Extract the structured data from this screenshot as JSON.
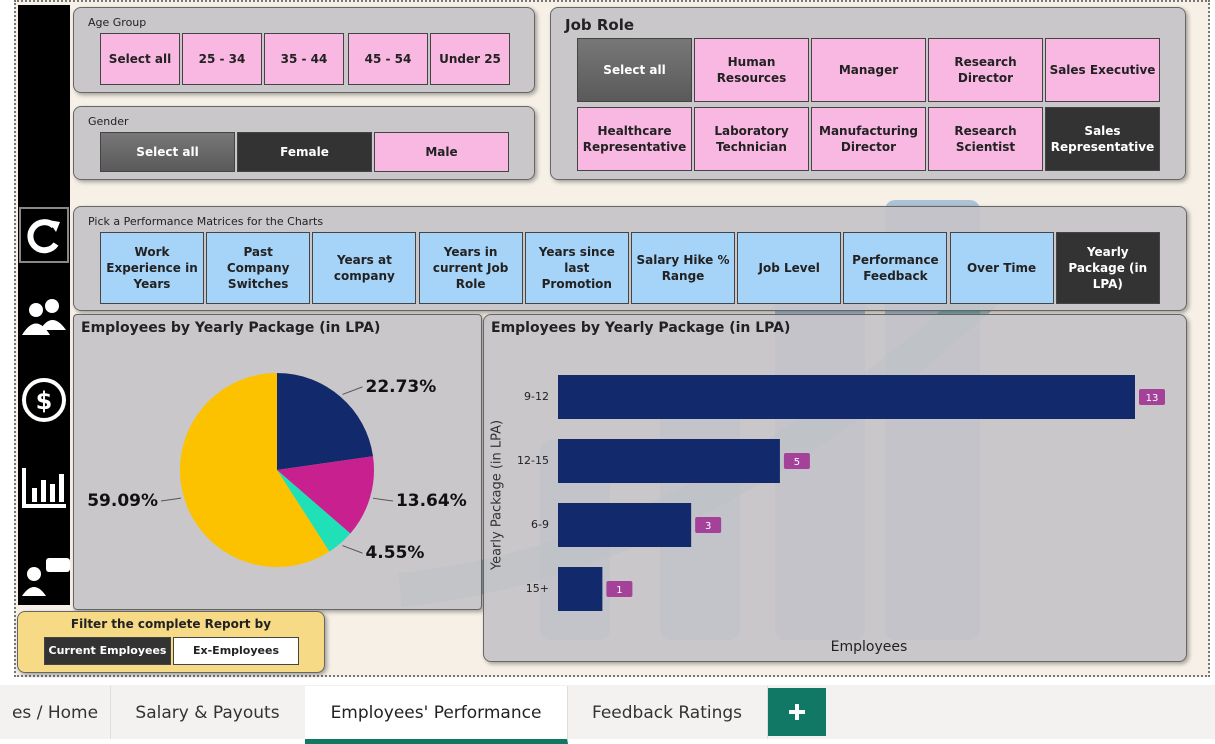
{
  "age_group": {
    "title": "Age Group",
    "options": [
      "Select all",
      "25 - 34",
      "35 - 44",
      "45 - 54",
      "Under 25"
    ]
  },
  "gender": {
    "title": "Gender",
    "options": [
      "Select all",
      "Female",
      "Male"
    ]
  },
  "job_role": {
    "title": "Job Role",
    "options": [
      "Select all",
      "Human Resources",
      "Manager",
      "Research Director",
      "Sales Executive",
      "Healthcare Representative",
      "Laboratory Technician",
      "Manufacturing Director",
      "Research Scientist",
      "Sales Representative"
    ]
  },
  "metrics": {
    "title": "Pick a Performance Matrices for the Charts",
    "options": [
      "Work Experience in Years",
      "Past Company Switches",
      "Years at company",
      "Years in current Job Role",
      "Years since last Promotion",
      "Salary Hike % Range",
      "Job Level",
      "Performance Feedback",
      "Over Time",
      "Yearly Package (in LPA)"
    ]
  },
  "filter": {
    "title": "Filter the complete Report by",
    "options": [
      "Current Employees",
      "Ex-Employees"
    ]
  },
  "tabs": [
    "es / Home",
    "Salary & Payouts",
    "Employees' Performance",
    "Feedback Ratings"
  ],
  "chart_data": [
    {
      "type": "pie",
      "title": "Employees by Yearly Package (in LPA)",
      "values": [
        22.73,
        13.64,
        4.55,
        59.09
      ],
      "value_labels": [
        "22.73%",
        "13.64%",
        "4.55%",
        "59.09%"
      ],
      "colors": [
        "#12296b",
        "#c8208f",
        "#1fe0b6",
        "#fcc200"
      ]
    },
    {
      "type": "bar",
      "orientation": "horizontal",
      "title": "Employees by Yearly Package (in LPA)",
      "y_label": "Yearly Package (in LPA)",
      "x_label": "Employees",
      "categories": [
        "9-12",
        "12-15",
        "6-9",
        "15+"
      ],
      "values": [
        13,
        5,
        3,
        1
      ],
      "color": "#12296b",
      "label_color": "#a4429a"
    }
  ]
}
